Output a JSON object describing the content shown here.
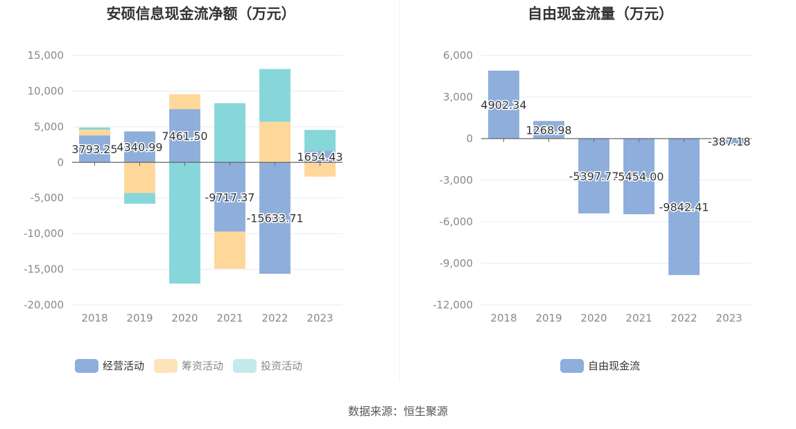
{
  "source_text": "数据来源：恒生聚源",
  "colors": {
    "operating": "#8eaedb",
    "financing": "#fed89a",
    "investing": "#86d6da",
    "free_cash_flow": "#8eaedb",
    "grid": "#e6e9f0",
    "axis_text": "#888888"
  },
  "chart_data": [
    {
      "type": "bar",
      "stacked": true,
      "title": "安硕信息现金流净额（万元）",
      "categories": [
        "2018",
        "2019",
        "2020",
        "2021",
        "2022",
        "2023"
      ],
      "series": [
        {
          "name": "经营活动",
          "values": [
            3793.25,
            4340.99,
            7461.5,
            -9717.37,
            -15633.71,
            1654.43
          ]
        },
        {
          "name": "筹资活动",
          "values": [
            800,
            -4300,
            2100,
            -5200,
            5700,
            -2000
          ]
        },
        {
          "name": "投资活动",
          "values": [
            300,
            -1500,
            -17000,
            8300,
            7400,
            2900
          ]
        }
      ],
      "data_labels": [
        "3793.25",
        "4340.99",
        "7461.50",
        "-9717.37",
        "-15633.71",
        "1654.43"
      ],
      "ylim": [
        -20000,
        15000
      ],
      "yticks": [
        "15,000",
        "10,000",
        "5,000",
        "0",
        "-5,000",
        "-10,000",
        "-15,000",
        "-20,000"
      ],
      "legend_position": "bottom",
      "grid": true
    },
    {
      "type": "bar",
      "title": "自由现金流量（万元）",
      "categories": [
        "2018",
        "2019",
        "2020",
        "2021",
        "2022",
        "2023"
      ],
      "series": [
        {
          "name": "自由现金流",
          "values": [
            4902.34,
            1268.98,
            -5397.77,
            -5454.0,
            -9842.41,
            -387.18
          ]
        }
      ],
      "data_labels": [
        "4902.34",
        "1268.98",
        "-5397.77",
        "-5454.00",
        "-9842.41",
        "-387.18"
      ],
      "ylim": [
        -12000,
        6000
      ],
      "yticks": [
        "6,000",
        "3,000",
        "0",
        "-3,000",
        "-6,000",
        "-9,000",
        "-12,000"
      ],
      "legend_position": "bottom",
      "grid": true
    }
  ]
}
